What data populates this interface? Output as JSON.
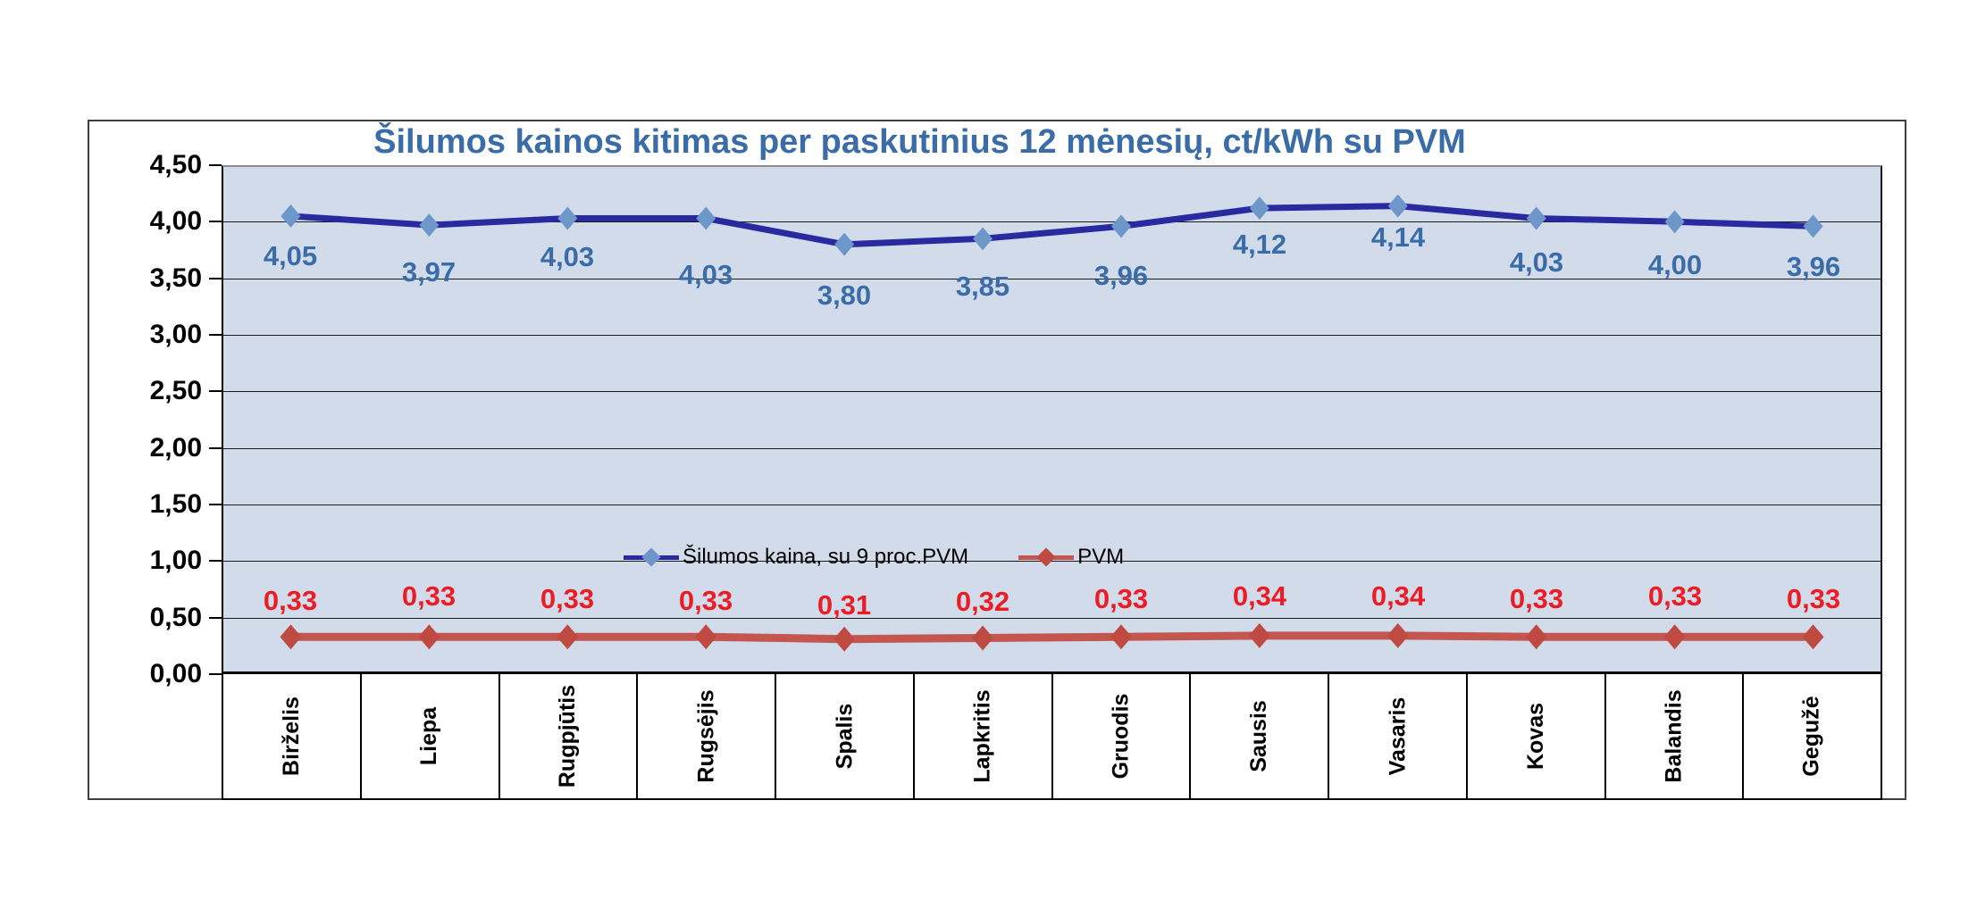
{
  "chart_data": {
    "type": "line",
    "title": "Šilumos kainos kitimas per paskutinius 12 mėnesių, ct/kWh su PVM",
    "title_color": "#3a6ca8",
    "categories": [
      "Birželis",
      "Liepa",
      "Rugpjūtis",
      "Rugsėjis",
      "Spalis",
      "Lapkritis",
      "Gruodis",
      "Sausis",
      "Vasaris",
      "Kovas",
      "Balandis",
      "Gegužė"
    ],
    "series": [
      {
        "name": "Šilumos kaina, su 9 proc.PVM",
        "values": [
          4.05,
          3.97,
          4.03,
          4.03,
          3.8,
          3.85,
          3.96,
          4.12,
          4.14,
          4.03,
          4.0,
          3.96
        ],
        "line_color": "#2a2aa0",
        "marker_color": "#6d96c9",
        "label_color": "#3a6ca8"
      },
      {
        "name": "PVM",
        "values": [
          0.33,
          0.33,
          0.33,
          0.33,
          0.31,
          0.32,
          0.33,
          0.34,
          0.34,
          0.33,
          0.33,
          0.33
        ],
        "line_color": "#c3574f",
        "marker_color": "#bf4a42",
        "label_color": "#ec1c24"
      }
    ],
    "ylim": [
      0,
      4.5
    ],
    "ytick_step": 0.5,
    "ytick_labels": [
      "0,00",
      "0,50",
      "1,00",
      "1,50",
      "2,00",
      "2,50",
      "3,00",
      "3,50",
      "4,00",
      "4,50"
    ],
    "decimal_separator": ",",
    "grid": true,
    "legend_position": "inside-bottom-center",
    "plot_background": "#d2dbea"
  }
}
